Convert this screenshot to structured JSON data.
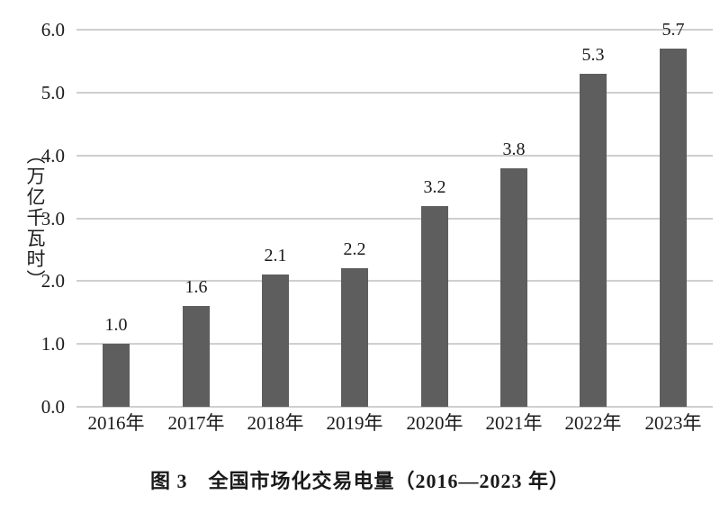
{
  "chart_data": {
    "type": "bar",
    "title": "图 3　全国市场化交易电量（2016—2023 年）",
    "xlabel": "",
    "ylabel": "（万亿千瓦时）",
    "categories": [
      "2016年",
      "2017年",
      "2018年",
      "2019年",
      "2020年",
      "2021年",
      "2022年",
      "2023年"
    ],
    "values": [
      1.0,
      1.6,
      2.1,
      2.2,
      3.2,
      3.8,
      5.3,
      5.7
    ],
    "data_labels": [
      "1.0",
      "1.6",
      "2.1",
      "2.2",
      "3.2",
      "3.8",
      "5.3",
      "5.7"
    ],
    "ylim": [
      0,
      6
    ],
    "ytick_step": 1.0,
    "ytick_labels": [
      "0.0",
      "1.0",
      "2.0",
      "3.0",
      "4.0",
      "5.0",
      "6.0"
    ],
    "grid": "horizontal",
    "legend": "none",
    "bar_color": "#5e5e5e",
    "gridline_color": "#cfcfcf",
    "text_color": "#1a1a1a",
    "background_color": "#ffffff"
  }
}
